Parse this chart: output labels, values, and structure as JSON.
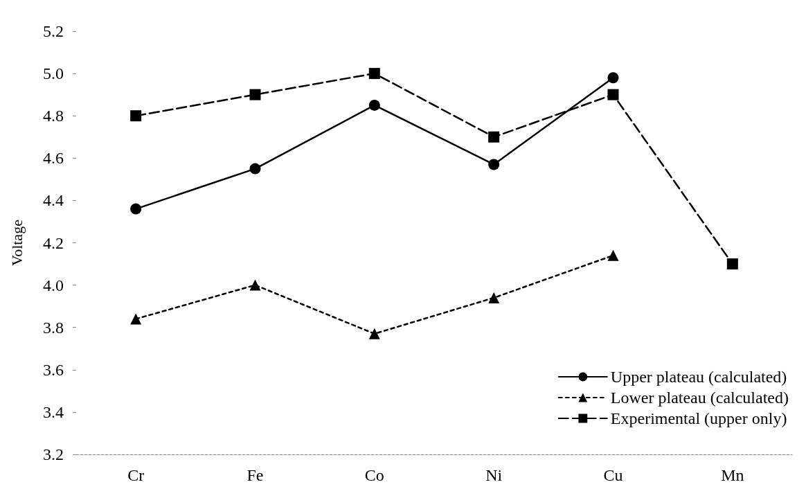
{
  "chart_data": {
    "type": "line",
    "ylabel": "Voltage",
    "categories": [
      "Cr",
      "Fe",
      "Co",
      "Ni",
      "Cu",
      "Mn"
    ],
    "ylim": [
      3.2,
      5.2
    ],
    "yticks": [
      3.2,
      3.4,
      3.6,
      3.8,
      {
        "value": 4,
        "label": "4.0"
      },
      4.2,
      4.4,
      4.6,
      4.8,
      {
        "value": 5,
        "label": "5.0"
      },
      5.2
    ],
    "grid": false,
    "legend": "bottom right",
    "series": [
      {
        "name": "Upper plateau (calculated)",
        "color": "#000000",
        "marker": "circle",
        "line_style": "solid",
        "values": [
          4.36,
          4.55,
          4.85,
          4.57,
          4.98,
          null
        ]
      },
      {
        "name": "Lower plateau (calculated)",
        "color": "#000000",
        "marker": "triangle",
        "line_style": "dotted",
        "values": [
          3.84,
          4.0,
          3.77,
          3.94,
          4.14,
          null
        ]
      },
      {
        "name": "Experimental (upper only)",
        "color": "#000000",
        "marker": "square",
        "line_style": "dashed",
        "values": [
          4.8,
          4.9,
          5.0,
          4.7,
          4.9,
          4.1
        ]
      }
    ]
  }
}
